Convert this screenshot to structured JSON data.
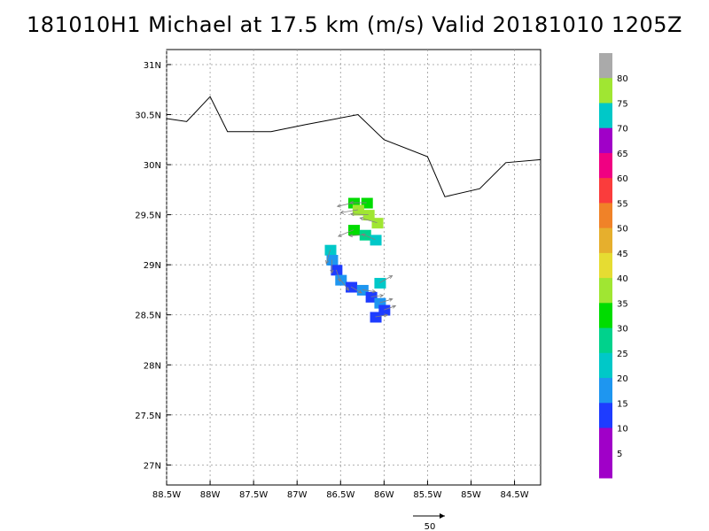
{
  "title": "181010H1 Michael at 17.5 km (m/s) Valid 20181010 1205Z",
  "map": {
    "lat_labels": [
      "31N",
      "30.5N",
      "30N",
      "29.5N",
      "29N",
      "28.5N",
      "28N",
      "27.5N",
      "27N"
    ],
    "lat_values": [
      31,
      30.5,
      30,
      29.5,
      29,
      28.5,
      28,
      27.5,
      27
    ],
    "lon_labels": [
      "88.5W",
      "88W",
      "87.5W",
      "87W",
      "86.5W",
      "86W",
      "85.5W",
      "85W",
      "84.5W"
    ],
    "lon_values": [
      -88.5,
      -88,
      -87.5,
      -87,
      -86.5,
      -86,
      -85.5,
      -85,
      -84.5
    ],
    "lon_range": [
      -88.5,
      -84.2
    ],
    "lat_range": [
      26.8,
      31.15
    ],
    "coastline": [
      [
        -88.5,
        30.46
      ],
      [
        -88.27,
        30.43
      ],
      [
        -88.0,
        30.68
      ],
      [
        -87.8,
        30.33
      ],
      [
        -87.3,
        30.33
      ],
      [
        -86.9,
        30.4
      ],
      [
        -86.3,
        30.5
      ],
      [
        -86.0,
        30.25
      ],
      [
        -85.5,
        30.08
      ],
      [
        -85.3,
        29.68
      ],
      [
        -84.9,
        29.76
      ],
      [
        -84.6,
        30.02
      ],
      [
        -84.2,
        30.05
      ]
    ],
    "grid": true
  },
  "colorbar": {
    "labels": [
      "80",
      "75",
      "70",
      "65",
      "60",
      "55",
      "50",
      "45",
      "40",
      "35",
      "30",
      "25",
      "20",
      "15",
      "10",
      "5"
    ],
    "colors": [
      "#aaaaaa",
      "#a0e632",
      "#00c8c8",
      "#a000c8",
      "#f00082",
      "#fa3c3c",
      "#f08228",
      "#e6af2d",
      "#e6dc32",
      "#a0e632",
      "#00dc00",
      "#00d28c",
      "#00c8c8",
      "#1e96f0",
      "#1e3cff",
      "#a000c8",
      "#a000c8"
    ]
  },
  "wind_field": {
    "units": "m/s",
    "cells": [
      {
        "lat": 29.62,
        "lon": -86.35,
        "speed": 35
      },
      {
        "lat": 29.62,
        "lon": -86.2,
        "speed": 35
      },
      {
        "lat": 29.55,
        "lon": -86.3,
        "speed": 40
      },
      {
        "lat": 29.5,
        "lon": -86.18,
        "speed": 40
      },
      {
        "lat": 29.42,
        "lon": -86.08,
        "speed": 40
      },
      {
        "lat": 29.35,
        "lon": -86.35,
        "speed": 35
      },
      {
        "lat": 29.3,
        "lon": -86.22,
        "speed": 30
      },
      {
        "lat": 29.25,
        "lon": -86.1,
        "speed": 25
      },
      {
        "lat": 29.15,
        "lon": -86.62,
        "speed": 25
      },
      {
        "lat": 29.05,
        "lon": -86.6,
        "speed": 20
      },
      {
        "lat": 28.95,
        "lon": -86.55,
        "speed": 15
      },
      {
        "lat": 28.85,
        "lon": -86.5,
        "speed": 20
      },
      {
        "lat": 28.78,
        "lon": -86.38,
        "speed": 15
      },
      {
        "lat": 28.75,
        "lon": -86.25,
        "speed": 20
      },
      {
        "lat": 28.68,
        "lon": -86.15,
        "speed": 15
      },
      {
        "lat": 28.62,
        "lon": -86.05,
        "speed": 20
      },
      {
        "lat": 28.55,
        "lon": -86.0,
        "speed": 15
      },
      {
        "lat": 28.48,
        "lon": -86.1,
        "speed": 15
      },
      {
        "lat": 28.82,
        "lon": -86.05,
        "speed": 25
      }
    ]
  },
  "reference_vector": {
    "label": "50"
  }
}
